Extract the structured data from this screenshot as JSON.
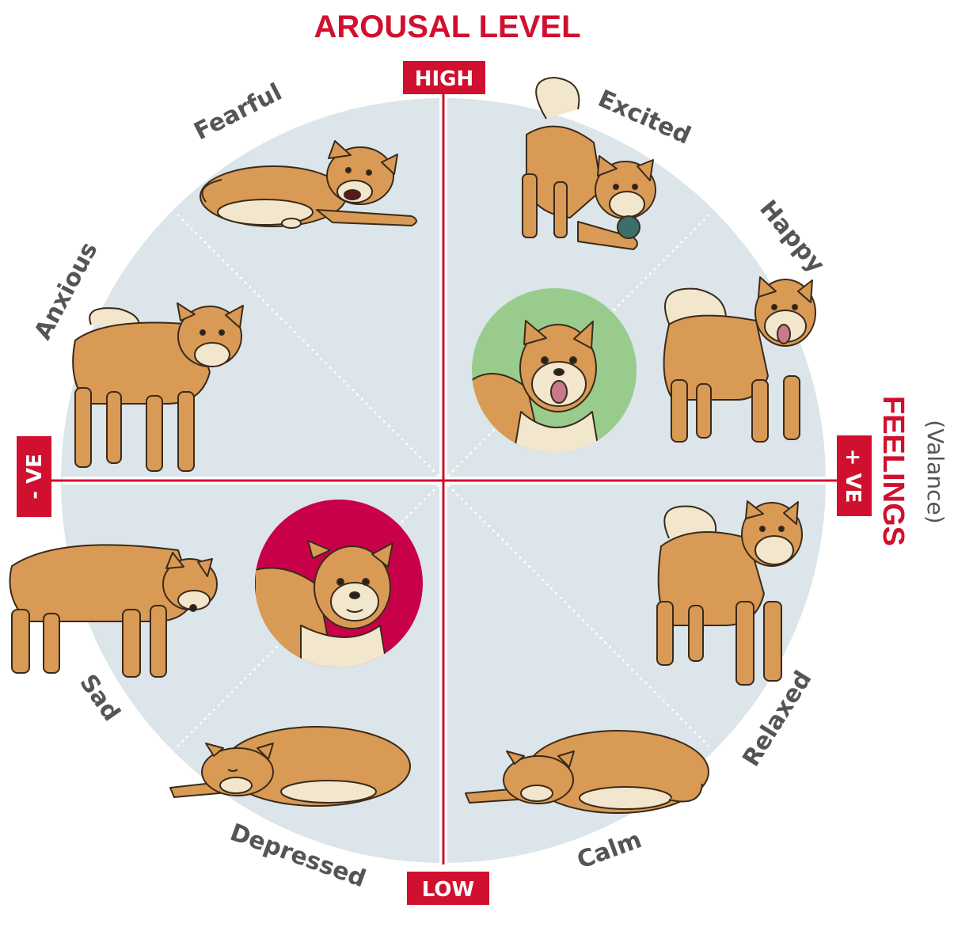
{
  "title": "AROUSAL LEVEL",
  "axis": {
    "high": "HIGH",
    "low": "LOW",
    "negative": "- VE",
    "positive": "+ VE",
    "feelings": "FEELINGS",
    "valence": "(Valance)"
  },
  "emotions": {
    "fearful": "Fearful",
    "excited": "Excited",
    "happy": "Happy",
    "anxious": "Anxious",
    "sad": "Sad",
    "relaxed": "Relaxed",
    "depressed": "Depressed",
    "calm": "Calm"
  },
  "colors": {
    "accent": "#d0102e",
    "circle_fill": "#dbe5ea",
    "label_text": "#555555",
    "positive_badge": "#99cc8c",
    "negative_badge": "#c8004a",
    "dog_fur": "#d99a55",
    "dog_cream": "#f2e6cc"
  }
}
